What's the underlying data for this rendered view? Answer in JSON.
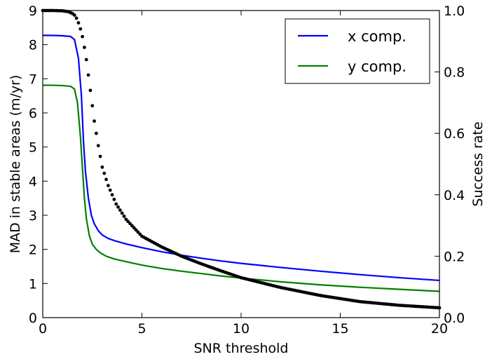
{
  "chart_data": {
    "type": "line",
    "xlabel": "SNR threshold",
    "ylabel_left": "MAD in stable areas (m/yr)",
    "ylabel_right": "Success rate",
    "xlim": [
      0,
      20
    ],
    "ylim_left": [
      0,
      9
    ],
    "ylim_right": [
      0.0,
      1.0
    ],
    "x_ticks": [
      "0",
      "5",
      "10",
      "15",
      "20"
    ],
    "y_left_ticks": [
      "0",
      "1",
      "2",
      "3",
      "4",
      "5",
      "6",
      "7",
      "8",
      "9"
    ],
    "y_right_ticks": [
      "0.0",
      "0.2",
      "0.4",
      "0.6",
      "0.8",
      "1.0"
    ],
    "legend": {
      "placement": "top-right",
      "entries": [
        "x comp.",
        "y comp."
      ]
    },
    "series": [
      {
        "name": "x comp.",
        "axis": "left",
        "style": "line",
        "color": "#0000ff",
        "x": [
          0,
          0.5,
          1.0,
          1.4,
          1.6,
          1.8,
          1.95,
          2.05,
          2.15,
          2.3,
          2.45,
          2.6,
          2.8,
          3.0,
          3.3,
          3.7,
          4.2,
          5,
          6,
          7,
          8,
          9,
          10,
          12,
          14,
          16,
          18,
          20
        ],
        "values": [
          8.27,
          8.27,
          8.26,
          8.24,
          8.15,
          7.6,
          6.5,
          5.2,
          4.3,
          3.5,
          3.0,
          2.75,
          2.55,
          2.42,
          2.32,
          2.24,
          2.16,
          2.05,
          1.93,
          1.83,
          1.74,
          1.66,
          1.59,
          1.47,
          1.36,
          1.26,
          1.17,
          1.09
        ]
      },
      {
        "name": "y comp.",
        "axis": "left",
        "style": "line",
        "color": "#008000",
        "x": [
          0,
          0.5,
          1.0,
          1.4,
          1.6,
          1.75,
          1.9,
          2.0,
          2.1,
          2.2,
          2.35,
          2.5,
          2.7,
          2.9,
          3.2,
          3.6,
          4.2,
          5,
          6,
          7,
          8,
          9,
          10,
          12,
          14,
          16,
          18,
          20
        ],
        "values": [
          6.81,
          6.81,
          6.8,
          6.78,
          6.7,
          6.3,
          5.3,
          4.4,
          3.5,
          2.9,
          2.4,
          2.15,
          2.0,
          1.9,
          1.8,
          1.72,
          1.64,
          1.54,
          1.44,
          1.36,
          1.29,
          1.22,
          1.16,
          1.05,
          0.96,
          0.89,
          0.83,
          0.77
        ]
      },
      {
        "name": "",
        "axis": "right",
        "style": "dots",
        "color": "#000000",
        "x": [
          0,
          0.5,
          1.0,
          1.3,
          1.5,
          1.6,
          1.7,
          1.8,
          1.9,
          2.0,
          2.1,
          2.2,
          2.3,
          2.4,
          2.5,
          2.6,
          2.8,
          3.0,
          3.3,
          3.7,
          4.2,
          5,
          6,
          7,
          8,
          9,
          10,
          12,
          14,
          16,
          18,
          20
        ],
        "values": [
          1.0,
          1.0,
          0.999,
          0.996,
          0.99,
          0.985,
          0.975,
          0.96,
          0.94,
          0.915,
          0.88,
          0.84,
          0.79,
          0.74,
          0.69,
          0.64,
          0.56,
          0.49,
          0.43,
          0.37,
          0.32,
          0.265,
          0.23,
          0.2,
          0.175,
          0.152,
          0.13,
          0.098,
          0.072,
          0.052,
          0.04,
          0.032
        ]
      }
    ]
  }
}
